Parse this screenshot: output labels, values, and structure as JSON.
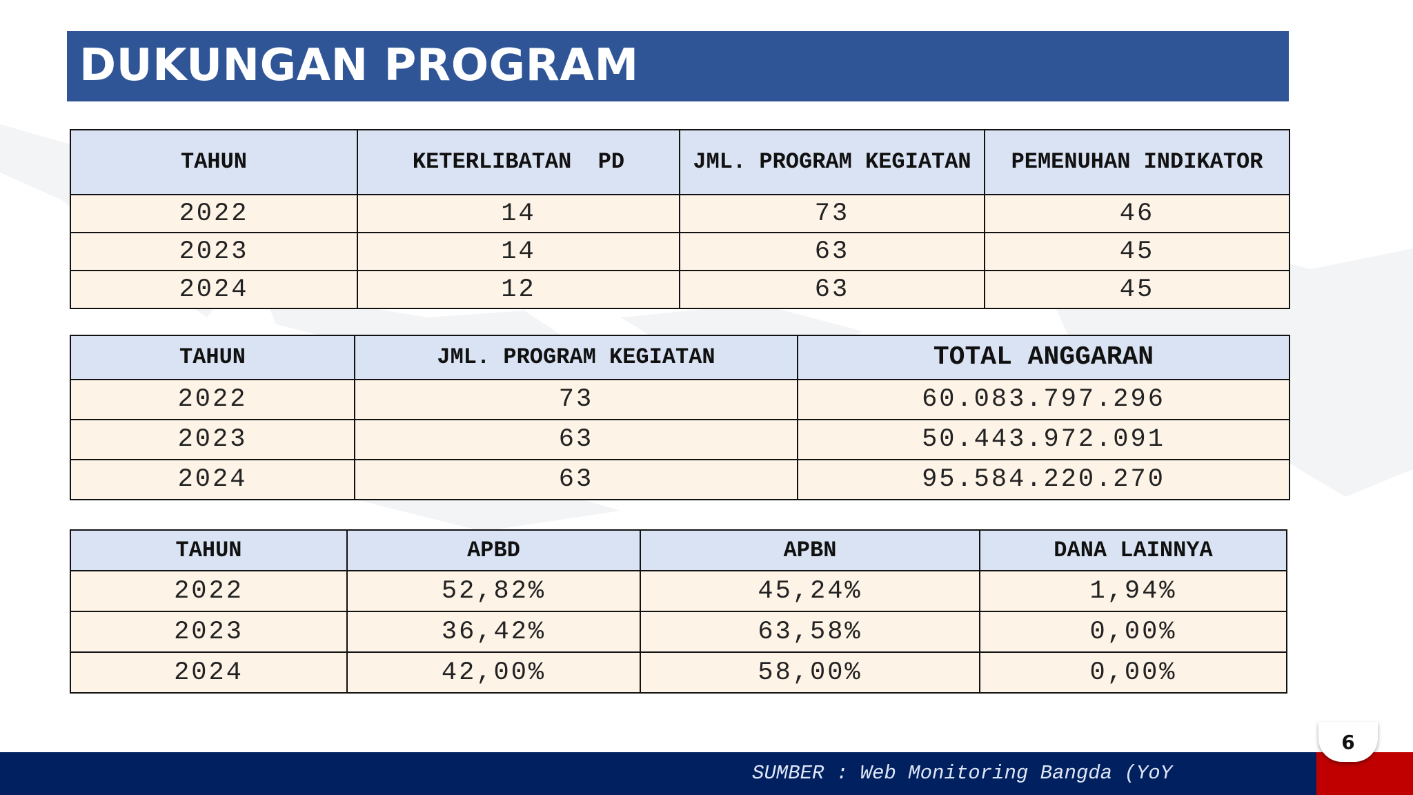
{
  "title": "DUKUNGAN PROGRAM",
  "table1": {
    "headers": [
      "TAHUN",
      "KETERLIBATAN  PD",
      "JML. PROGRAM KEGIATAN",
      "PEMENUHAN INDIKATOR"
    ],
    "rows": [
      [
        "2022",
        "14",
        "73",
        "46"
      ],
      [
        "2023",
        "14",
        "63",
        "45"
      ],
      [
        "2024",
        "12",
        "63",
        "45"
      ]
    ]
  },
  "table2": {
    "headers": [
      "TAHUN",
      "JML. PROGRAM KEGIATAN",
      "TOTAL ANGGARAN"
    ],
    "rows": [
      [
        "2022",
        "73",
        "60.083.797.296"
      ],
      [
        "2023",
        "63",
        "50.443.972.091"
      ],
      [
        "2024",
        "63",
        "95.584.220.270"
      ]
    ]
  },
  "table3": {
    "headers": [
      "TAHUN",
      "APBD",
      "APBN",
      "DANA LAINNYA"
    ],
    "rows": [
      [
        "2022",
        "52,82%",
        "45,24%",
        "1,94%"
      ],
      [
        "2023",
        "36,42%",
        "63,58%",
        "0,00%"
      ],
      [
        "2024",
        "42,00%",
        "58,00%",
        "0,00%"
      ]
    ]
  },
  "footer": {
    "source": "SUMBER : Web Monitoring Bangda (YoY",
    "page_number": "6"
  },
  "colors": {
    "title_bar": "#2f5597",
    "header_fill": "#dae3f3",
    "cell_fill": "#fdf3e7",
    "footer_navy": "#002060",
    "footer_red": "#c00000"
  }
}
